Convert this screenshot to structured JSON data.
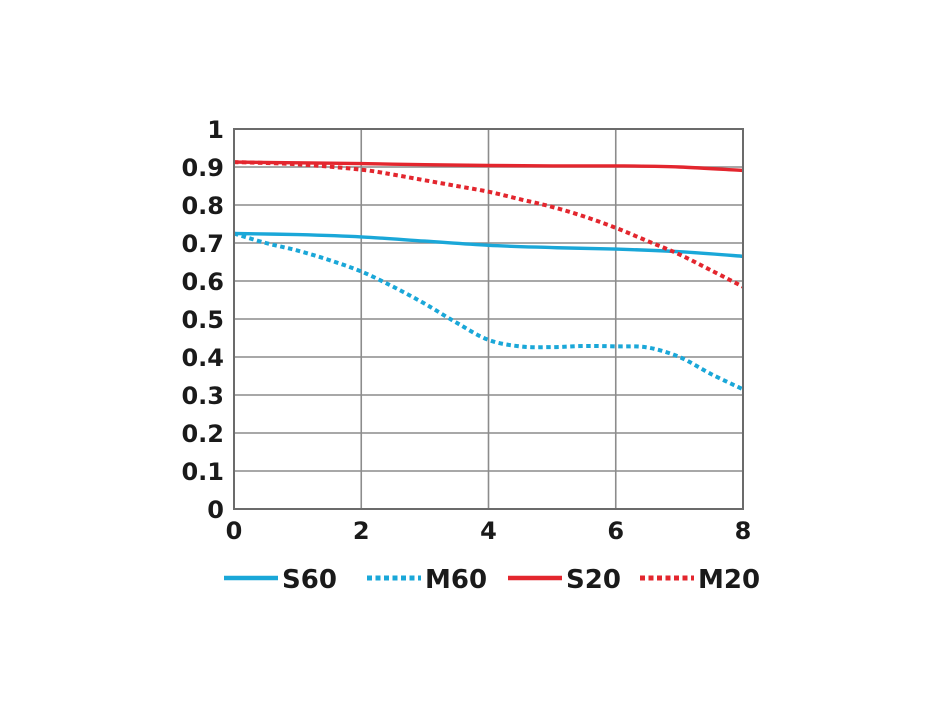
{
  "chart_data": {
    "type": "line",
    "title": "",
    "xlabel": "",
    "ylabel": "",
    "xlim": [
      0,
      8
    ],
    "ylim": [
      0,
      1
    ],
    "grid": true,
    "legend_position": "bottom",
    "x_ticks": [
      "0",
      "2",
      "4",
      "6",
      "8"
    ],
    "y_ticks": [
      "0",
      "0.1",
      "0.2",
      "0.3",
      "0.4",
      "0.5",
      "0.6",
      "0.7",
      "0.8",
      "0.9",
      "1"
    ],
    "series": [
      {
        "name": "S60",
        "color": "#1aa7d8",
        "style": "solid",
        "x": [
          0,
          1,
          2,
          3,
          4,
          5,
          6,
          7,
          8
        ],
        "y": [
          0.725,
          0.722,
          0.716,
          0.705,
          0.694,
          0.688,
          0.684,
          0.677,
          0.665
        ]
      },
      {
        "name": "M60",
        "color": "#1aa7d8",
        "style": "dotted",
        "x": [
          0,
          0.5,
          1,
          1.5,
          2,
          2.5,
          3,
          3.5,
          4,
          4.5,
          5,
          5.5,
          6,
          6.5,
          7,
          7.5,
          8
        ],
        "y": [
          0.725,
          0.7,
          0.68,
          0.655,
          0.625,
          0.585,
          0.54,
          0.49,
          0.445,
          0.428,
          0.426,
          0.429,
          0.428,
          0.425,
          0.4,
          0.355,
          0.315
        ]
      },
      {
        "name": "S20",
        "color": "#e3262e",
        "style": "solid",
        "x": [
          0,
          1,
          2,
          3,
          4,
          5,
          6,
          7,
          8
        ],
        "y": [
          0.913,
          0.911,
          0.909,
          0.906,
          0.904,
          0.903,
          0.903,
          0.9,
          0.891
        ]
      },
      {
        "name": "M20",
        "color": "#e3262e",
        "style": "dotted",
        "x": [
          0,
          1,
          2,
          2.5,
          3,
          3.5,
          4,
          4.5,
          5,
          5.5,
          6,
          6.5,
          7,
          7.5,
          8
        ],
        "y": [
          0.913,
          0.907,
          0.893,
          0.88,
          0.865,
          0.85,
          0.835,
          0.815,
          0.795,
          0.77,
          0.74,
          0.705,
          0.67,
          0.628,
          0.585
        ]
      }
    ]
  }
}
